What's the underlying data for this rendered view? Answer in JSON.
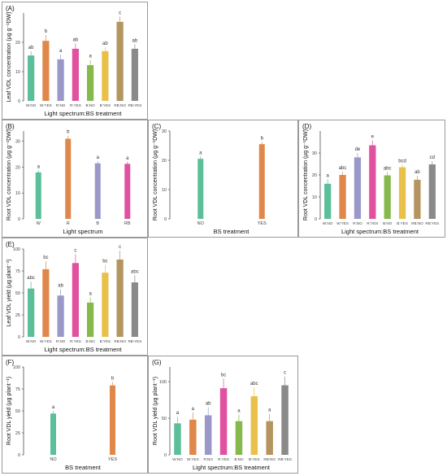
{
  "chart_data": [
    {
      "id": "A",
      "type": "bar",
      "panel_label": "(A)",
      "ylabel": "Leaf VDL concentration (μg g⁻¹DW)",
      "xlabel": "Light spectrum:BS treatment",
      "ylim": [
        0,
        30
      ],
      "yticks": [
        0,
        10,
        20
      ],
      "categories": [
        "W:NO",
        "W:YES",
        "R:NO",
        "R:YES",
        "B:NO",
        "B:YES",
        "RB:NO",
        "RB:YES"
      ],
      "values": [
        15.5,
        20.5,
        14.2,
        17.8,
        12.2,
        17.0,
        27.0,
        17.8
      ],
      "errors": [
        1.5,
        2.0,
        1.6,
        1.8,
        1.8,
        1.3,
        1.8,
        1.5
      ],
      "letters": [
        "ab",
        "b",
        "a",
        "ab",
        "a",
        "ab",
        "c",
        "ab"
      ],
      "colors": [
        "#5bbf9a",
        "#e0874b",
        "#9a98c9",
        "#e0529f",
        "#86b84c",
        "#e9c14a",
        "#b4955f",
        "#8a8a8a"
      ]
    },
    {
      "id": "B",
      "type": "bar",
      "panel_label": "(B)",
      "ylabel": "Root VDL concentration (μg g⁻¹DW)",
      "xlabel": "Light spectrum",
      "ylim": [
        0,
        34
      ],
      "yticks": [
        0,
        10,
        20,
        30
      ],
      "categories": [
        "W",
        "R",
        "B",
        "RB"
      ],
      "values": [
        18.0,
        31.0,
        21.5,
        21.3
      ],
      "errors": [
        0.8,
        1.2,
        0.8,
        0.8
      ],
      "letters": [
        "a",
        "b",
        "a",
        "a"
      ],
      "colors": [
        "#5bbf9a",
        "#e0874b",
        "#9a98c9",
        "#e0529f"
      ]
    },
    {
      "id": "C",
      "type": "bar",
      "panel_label": "(C)",
      "ylabel": "Root VDL concentration (μg g⁻¹DW)",
      "xlabel": "BS treatment",
      "ylim": [
        0,
        30
      ],
      "yticks": [
        0,
        10,
        20,
        30
      ],
      "categories": [
        "NO",
        "YES"
      ],
      "values": [
        20.5,
        25.5
      ],
      "errors": [
        0.8,
        0.8
      ],
      "letters": [
        "a",
        "b"
      ],
      "colors": [
        "#5bbf9a",
        "#e0874b"
      ]
    },
    {
      "id": "D",
      "type": "bar",
      "panel_label": "(D)",
      "ylabel": "Root VDL concentration (μg g⁻¹DW)",
      "xlabel": "Light spectrum:BS treatment",
      "ylim": [
        0,
        40
      ],
      "yticks": [
        0,
        10,
        20,
        30
      ],
      "categories": [
        "W:NO",
        "W:YES",
        "R:NO",
        "R:YES",
        "B:NO",
        "B:YES",
        "RB:NO",
        "RB:YES"
      ],
      "values": [
        16.0,
        20.0,
        28.0,
        33.5,
        19.8,
        23.5,
        17.8,
        24.8
      ],
      "errors": [
        2.0,
        1.5,
        2.0,
        2.2,
        1.5,
        1.2,
        1.8,
        1.5
      ],
      "letters": [
        "a",
        "abc",
        "de",
        "e",
        "abc",
        "bcd",
        "ab",
        "cd"
      ],
      "colors": [
        "#5bbf9a",
        "#e0874b",
        "#9a98c9",
        "#e0529f",
        "#86b84c",
        "#e9c14a",
        "#b4955f",
        "#8a8a8a"
      ]
    },
    {
      "id": "E",
      "type": "bar",
      "panel_label": "(E)",
      "ylabel": "Leaf VDL yield (μg plant⁻¹)",
      "xlabel": "Light spectrum:BS treatment",
      "ylim": [
        0,
        100
      ],
      "yticks": [
        0,
        25,
        50,
        75,
        100
      ],
      "categories": [
        "W:NO",
        "W:YES",
        "R:NO",
        "R:YES",
        "B:NO",
        "B:YES",
        "RB:NO",
        "RB:YES"
      ],
      "values": [
        55,
        77,
        47,
        84,
        39,
        73,
        88,
        62
      ],
      "errors": [
        8,
        9,
        7,
        10,
        6,
        9,
        10,
        8
      ],
      "letters": [
        "abc",
        "bc",
        "ab",
        "c",
        "a",
        "bc",
        "c",
        "abc"
      ],
      "colors": [
        "#5bbf9a",
        "#e0874b",
        "#9a98c9",
        "#e0529f",
        "#86b84c",
        "#e9c14a",
        "#b4955f",
        "#8a8a8a"
      ]
    },
    {
      "id": "F",
      "type": "bar",
      "panel_label": "(F)",
      "ylabel": "Root VDL yield (μg plant⁻¹)",
      "xlabel": "BS treatment",
      "ylim": [
        0,
        100
      ],
      "yticks": [
        0,
        25,
        50,
        75,
        100
      ],
      "categories": [
        "NO",
        "YES"
      ],
      "values": [
        47,
        79
      ],
      "errors": [
        3,
        4
      ],
      "letters": [
        "a",
        "b"
      ],
      "colors": [
        "#5bbf9a",
        "#e0874b"
      ]
    },
    {
      "id": "G",
      "type": "bar",
      "panel_label": "(G)",
      "ylabel": "Root VDL yield (μg plant⁻¹)",
      "xlabel": "Light spectrum:BS treatment",
      "ylim": [
        0,
        120
      ],
      "yticks": [
        0,
        50,
        100
      ],
      "categories": [
        "W:NO",
        "W:YES",
        "R:NO",
        "R:YES",
        "B:NO",
        "B:YES",
        "RB:NO",
        "RB:YES"
      ],
      "values": [
        43,
        48,
        54,
        91,
        46,
        80,
        46,
        95
      ],
      "errors": [
        9,
        10,
        11,
        13,
        9,
        12,
        10,
        12
      ],
      "letters": [
        "a",
        "a",
        "ab",
        "bc",
        "a",
        "abc",
        "a",
        "c"
      ],
      "colors": [
        "#5bbf9a",
        "#e0874b",
        "#9a98c9",
        "#e0529f",
        "#86b84c",
        "#e9c14a",
        "#b4955f",
        "#8a8a8a"
      ]
    }
  ]
}
